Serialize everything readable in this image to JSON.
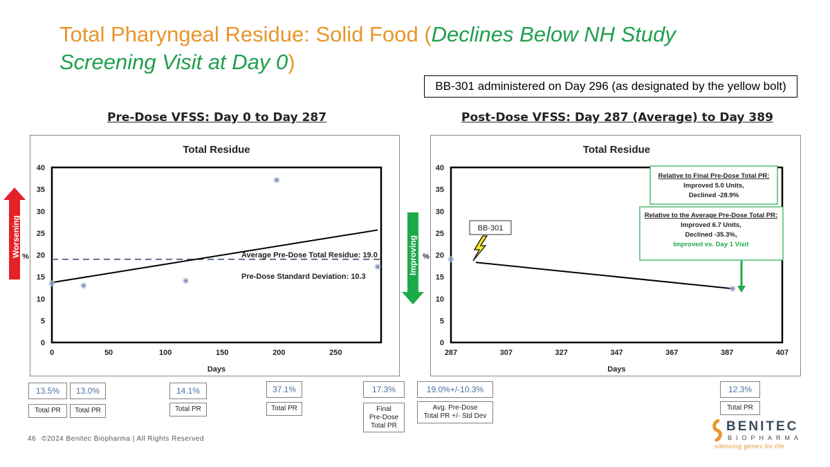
{
  "title": {
    "part1": "Total Pharyngeal Residue: Solid Food (",
    "part2": "Declines Below NH Study Screening Visit at Day 0",
    "part3": ")"
  },
  "banner": "BB-301 administered on Day 296 (as designated by the yellow bolt)",
  "left_heading": "Pre-Dose VFSS: Day 0 to Day 287",
  "right_heading": "Post-Dose VFSS: Day 287 (Average) to Day 389",
  "worsening_label": "Worsening",
  "improving_label": "Improving",
  "colors": {
    "worsening": "#E32227",
    "improving": "#1FAA4A",
    "accent": "#E8952B",
    "green_text": "#1F9E4D"
  },
  "chart_data": [
    {
      "type": "scatter",
      "title": "Total Residue",
      "xlabel": "Days",
      "ylabel": "%",
      "xlim": [
        0,
        290
      ],
      "ylim": [
        0,
        40
      ],
      "xticks": [
        0,
        50,
        100,
        150,
        200,
        250
      ],
      "yticks": [
        0,
        5,
        10,
        15,
        20,
        25,
        30,
        35,
        40
      ],
      "points": [
        {
          "x": 0,
          "y": 13.5
        },
        {
          "x": 28,
          "y": 13.0
        },
        {
          "x": 118,
          "y": 14.1
        },
        {
          "x": 198,
          "y": 37.1
        },
        {
          "x": 287,
          "y": 17.3
        }
      ],
      "trendline": {
        "x": [
          0,
          287
        ],
        "y": [
          13.7,
          25.7
        ]
      },
      "reference_line": {
        "y": 19.0,
        "style": "dashed"
      },
      "annotations": [
        "Average Pre-Dose Total Residue: 19.0",
        "Pre-Dose Standard Deviation: 10.3"
      ]
    },
    {
      "type": "scatter",
      "title": "Total Residue",
      "xlabel": "Days",
      "ylabel": "%",
      "xlim": [
        287,
        407
      ],
      "ylim": [
        0,
        40
      ],
      "xticks": [
        287,
        307,
        327,
        347,
        367,
        387,
        407
      ],
      "yticks": [
        0,
        5,
        10,
        15,
        20,
        25,
        30,
        35,
        40
      ],
      "points": [
        {
          "x": 287,
          "y": 19.0
        },
        {
          "x": 389,
          "y": 12.3
        }
      ],
      "trendline": {
        "x": [
          296,
          389
        ],
        "y": [
          18.3,
          12.3
        ]
      },
      "bolt_label": "BB-301",
      "bolt_day": 296,
      "callouts": [
        {
          "lines": [
            "Relative to Final Pre-Dose Total PR:",
            "Improved 5.0 Units,",
            "Declined -28.9%"
          ]
        },
        {
          "lines": [
            "Relative to the Average Pre-Dose Total PR:",
            "Improved 6.7 Units,",
            "Declined -35.3%,"
          ],
          "highlight": "Improved vs. Day 1 Visit"
        }
      ]
    }
  ],
  "value_boxes": [
    {
      "value": "13.5%",
      "label": [
        "Total PR"
      ]
    },
    {
      "value": "13.0%",
      "label": [
        "Total PR"
      ]
    },
    {
      "value": "14.1%",
      "label": [
        "Total PR"
      ]
    },
    {
      "value": "37.1%",
      "label": [
        "Total PR"
      ]
    },
    {
      "value": "17.3%",
      "label": [
        "Final",
        "Pre-Dose",
        "Total PR"
      ]
    },
    {
      "value": "19.0%+/-10.3%",
      "label": [
        "Avg. Pre-Dose",
        "Total PR +/- Std Dev"
      ]
    },
    {
      "value": "12.3%",
      "label": [
        "Total PR"
      ]
    }
  ],
  "footer": {
    "page_number": "46",
    "copyright": "©2024 Benitec Biopharma | All Rights Reserved"
  },
  "logo": {
    "name": "BENITEC",
    "sub": "BIOPHARMA",
    "tagline": "silencing genes for life"
  }
}
